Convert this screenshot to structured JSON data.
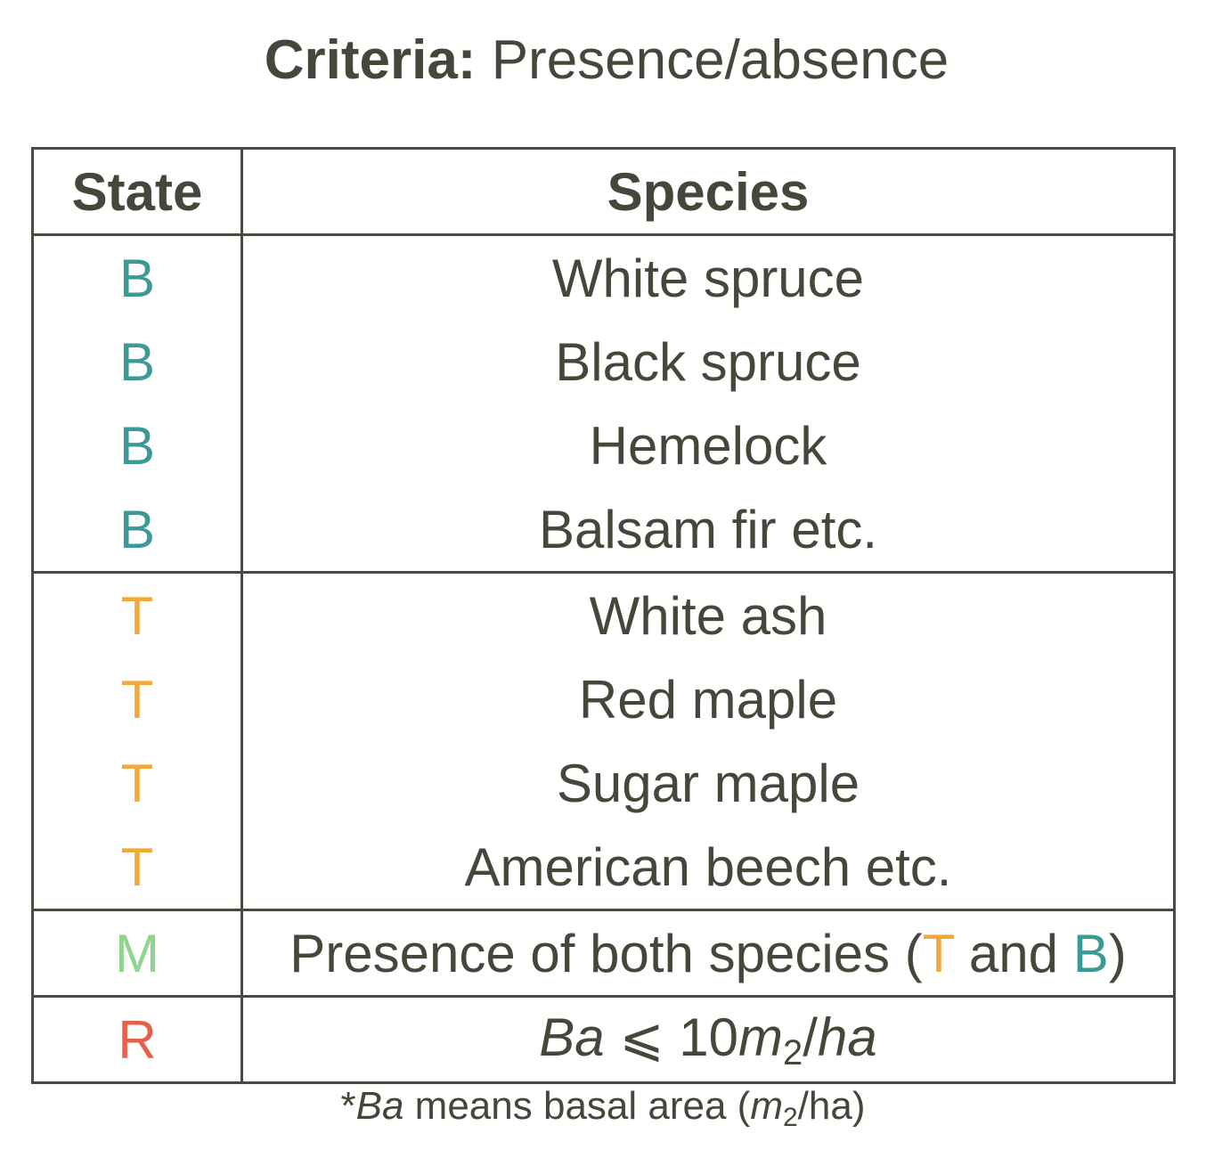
{
  "title": {
    "label": "Criteria:",
    "value": "Presence/absence"
  },
  "table": {
    "headers": {
      "state": "State",
      "species": "Species"
    },
    "rows": [
      {
        "state": "B",
        "species": "White spruce"
      },
      {
        "state": "B",
        "species": "Black spruce"
      },
      {
        "state": "B",
        "species": "Hemelock"
      },
      {
        "state": "B",
        "species": "Balsam fir etc."
      },
      {
        "state": "T",
        "species": "White ash"
      },
      {
        "state": "T",
        "species": "Red maple"
      },
      {
        "state": "T",
        "species": "Sugar maple"
      },
      {
        "state": "T",
        "species": "American beech etc."
      }
    ],
    "mixed_row": {
      "state": "M",
      "text_before": "Presence of both species (",
      "t": "T",
      "and": " and ",
      "b": "B",
      "text_after": ")"
    },
    "rule_row": {
      "state": "R",
      "ba": "Ba",
      "leq": " ⩽ ",
      "number": "10",
      "m": "m",
      "sub": "2",
      "slash": "/",
      "ha": "ha"
    }
  },
  "footnote": {
    "star": "*",
    "ba": "Ba",
    "text": " means basal area (",
    "m": "m",
    "sub": "2",
    "rest": "/ha)"
  },
  "colors": {
    "text": "#46473b",
    "border": "#4a4b40",
    "B": "#3b9a96",
    "T": "#f2a93b",
    "M": "#8fd48f",
    "R": "#e8604a"
  }
}
